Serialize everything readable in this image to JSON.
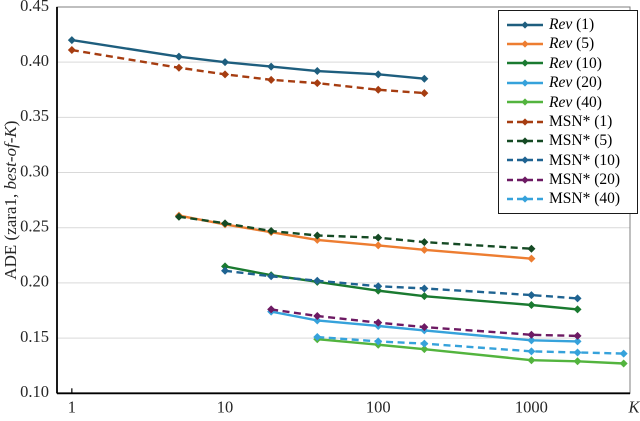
{
  "figure": {
    "background": "#ffffff",
    "axis_color": "#000000",
    "box_color": "#7f7f7f",
    "grid_color": "#d9d9d9",
    "text_color": "#262626"
  },
  "chart_data": {
    "type": "line",
    "title": "",
    "xlabel": "K",
    "ylabel": "ADE (zara1, best-of-K)",
    "ylabel_prefix": "ADE (zara1, ",
    "ylabel_italic": "best-of-K",
    "ylabel_suffix": ")",
    "x_scale": "log",
    "xlim": [
      0.8,
      4400
    ],
    "ylim": [
      0.1,
      0.45
    ],
    "x_ticks": [
      1,
      10,
      100,
      1000
    ],
    "y_ticks": [
      0.1,
      0.15,
      0.2,
      0.25,
      0.3,
      0.35,
      0.4,
      0.45
    ],
    "grid": "horizontal-only",
    "legend_position": "top-right",
    "series": [
      {
        "name": "Rev (1)",
        "label_italic": "Rev",
        "label_text": " (1)",
        "color": "#1e5e7e",
        "dash": false,
        "x": [
          1,
          5,
          10,
          20,
          40,
          100,
          200
        ],
        "y": [
          0.42,
          0.405,
          0.4,
          0.396,
          0.392,
          0.389,
          0.385
        ]
      },
      {
        "name": "Rev (5)",
        "label_italic": "Rev",
        "label_text": " (5)",
        "color": "#ed7d31",
        "dash": false,
        "x": [
          5,
          10,
          20,
          40,
          100,
          200,
          1000
        ],
        "y": [
          0.261,
          0.253,
          0.246,
          0.239,
          0.234,
          0.23,
          0.222
        ]
      },
      {
        "name": "Rev (10)",
        "label_italic": "Rev",
        "label_text": " (10)",
        "color": "#1a7a30",
        "dash": false,
        "x": [
          10,
          20,
          40,
          100,
          200,
          1000,
          2000
        ],
        "y": [
          0.215,
          0.207,
          0.201,
          0.193,
          0.188,
          0.18,
          0.176
        ]
      },
      {
        "name": "Rev (20)",
        "label_italic": "Rev",
        "label_text": " (20)",
        "color": "#36a2db",
        "dash": false,
        "x": [
          20,
          40,
          100,
          200,
          1000,
          2000
        ],
        "y": [
          0.174,
          0.166,
          0.161,
          0.157,
          0.148,
          0.147
        ]
      },
      {
        "name": "Rev (40)",
        "label_italic": "Rev",
        "label_text": " (40)",
        "color": "#53b43e",
        "dash": false,
        "x": [
          40,
          100,
          200,
          1000,
          2000,
          4000
        ],
        "y": [
          0.149,
          0.144,
          0.14,
          0.13,
          0.129,
          0.127
        ]
      },
      {
        "name": "MSN* (1)",
        "label_italic": "",
        "label_text": "MSN* (1)",
        "color": "#a63d11",
        "dash": true,
        "x": [
          1,
          5,
          10,
          20,
          40,
          100,
          200
        ],
        "y": [
          0.411,
          0.395,
          0.389,
          0.384,
          0.381,
          0.375,
          0.372
        ]
      },
      {
        "name": "MSN* (5)",
        "label_italic": "",
        "label_text": "MSN* (5)",
        "color": "#154a24",
        "dash": true,
        "x": [
          5,
          10,
          20,
          40,
          100,
          200,
          1000
        ],
        "y": [
          0.26,
          0.254,
          0.247,
          0.243,
          0.241,
          0.237,
          0.231
        ]
      },
      {
        "name": "MSN* (10)",
        "label_italic": "",
        "label_text": "MSN* (10)",
        "color": "#1f6391",
        "dash": true,
        "x": [
          10,
          20,
          40,
          100,
          200,
          1000,
          2000
        ],
        "y": [
          0.211,
          0.206,
          0.202,
          0.197,
          0.195,
          0.189,
          0.186
        ]
      },
      {
        "name": "MSN* (20)",
        "label_italic": "",
        "label_text": "MSN* (20)",
        "color": "#6d1a63",
        "dash": true,
        "x": [
          20,
          40,
          100,
          200,
          1000,
          2000
        ],
        "y": [
          0.176,
          0.17,
          0.164,
          0.16,
          0.153,
          0.152
        ]
      },
      {
        "name": "MSN* (40)",
        "label_italic": "",
        "label_text": "MSN* (40)",
        "color": "#36a2db",
        "dash": true,
        "x": [
          40,
          100,
          200,
          1000,
          2000,
          4000
        ],
        "y": [
          0.151,
          0.147,
          0.145,
          0.138,
          0.137,
          0.136
        ]
      }
    ]
  }
}
